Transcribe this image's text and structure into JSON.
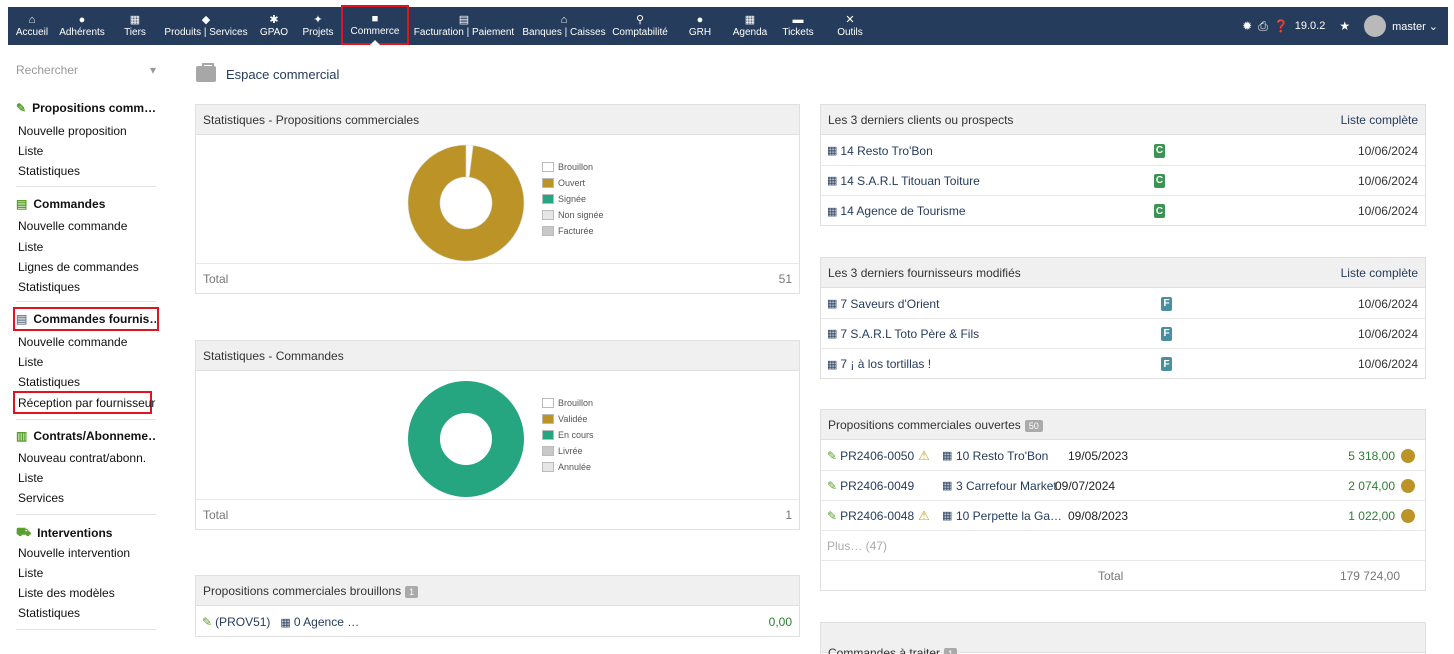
{
  "topnav": {
    "items": [
      {
        "label": "Accueil",
        "icon": "home-icon",
        "glyph": "⌂"
      },
      {
        "label": "Adhérents",
        "icon": "member-icon",
        "glyph": "●"
      },
      {
        "label": "Tiers",
        "icon": "building-icon",
        "glyph": "▦"
      },
      {
        "label": "Produits | Services",
        "icon": "cube-icon",
        "glyph": "◆"
      },
      {
        "label": "GPAO",
        "icon": "cogs-icon",
        "glyph": "✱"
      },
      {
        "label": "Projets",
        "icon": "project-icon",
        "glyph": "✦"
      },
      {
        "label": "Commerce",
        "icon": "briefcase-icon",
        "glyph": "■"
      },
      {
        "label": "Facturation | Paiement",
        "icon": "invoice-icon",
        "glyph": "▤"
      },
      {
        "label": "Banques | Caisses",
        "icon": "bank-icon",
        "glyph": "⌂"
      },
      {
        "label": "Comptabilité",
        "icon": "search-dollar-icon",
        "glyph": "⚲"
      },
      {
        "label": "GRH",
        "icon": "user-icon",
        "glyph": "●"
      },
      {
        "label": "Agenda",
        "icon": "calendar-icon",
        "glyph": "▦"
      },
      {
        "label": "Tickets",
        "icon": "ticket-icon",
        "glyph": "▬"
      },
      {
        "label": "Outils",
        "icon": "tools-icon",
        "glyph": "✕"
      }
    ],
    "version": "19.0.2",
    "user": "master ⌄"
  },
  "sidebar": {
    "search_placeholder": "Rechercher",
    "sections": [
      {
        "title": "Propositions comm…",
        "items": [
          "Nouvelle proposition",
          "Liste",
          "Statistiques"
        ]
      },
      {
        "title": "Commandes",
        "items": [
          "Nouvelle commande",
          "Liste",
          "Lignes de commandes",
          "Statistiques"
        ]
      },
      {
        "title": "Commandes fournis…",
        "items": [
          "Nouvelle commande",
          "Liste",
          "Statistiques",
          "Réception par fournisseur"
        ]
      },
      {
        "title": "Contrats/Abonneme…",
        "items": [
          "Nouveau contrat/abonn.",
          "Liste",
          "Services"
        ]
      },
      {
        "title": "Interventions",
        "items": [
          "Nouvelle intervention",
          "Liste",
          "Liste des modèles",
          "Statistiques"
        ]
      }
    ]
  },
  "page": {
    "title": "Espace commercial"
  },
  "stats_propals": {
    "title": "Statistiques - Propositions commerciales",
    "total_label": "Total",
    "total": "51",
    "chart_data": {
      "type": "pie",
      "categories": [
        "Brouillon",
        "Ouvert",
        "Signée",
        "Non signée",
        "Facturée"
      ],
      "values": [
        1,
        50,
        0,
        0,
        0
      ],
      "colors": [
        "#ffffff",
        "#bb9327",
        "#25a580",
        "#e6e6e6",
        "#c8c8c8"
      ]
    }
  },
  "stats_orders": {
    "title": "Statistiques - Commandes",
    "total_label": "Total",
    "total": "1",
    "chart_data": {
      "type": "pie",
      "categories": [
        "Brouillon",
        "Validée",
        "En cours",
        "Livrée",
        "Annulée"
      ],
      "values": [
        0,
        0,
        1,
        0,
        0
      ],
      "colors": [
        "#ffffff",
        "#bb9327",
        "#25a580",
        "#c8c8c8",
        "#e6e6e6"
      ]
    }
  },
  "draft_propals": {
    "title": "Propositions commerciales brouillons",
    "count": "1",
    "rows": [
      {
        "ref": "(PROV51)",
        "company": "0 Agence …",
        "amount": "0,00"
      }
    ]
  },
  "last_clients": {
    "title": "Les 3 derniers clients ou prospects",
    "link": "Liste complète",
    "rows": [
      {
        "name": "14 Resto Tro'Bon",
        "tag": "C",
        "date": "10/06/2024"
      },
      {
        "name": "14 S.A.R.L Titouan Toiture",
        "tag": "C",
        "date": "10/06/2024"
      },
      {
        "name": "14 Agence de Tourisme",
        "tag": "C",
        "date": "10/06/2024"
      }
    ]
  },
  "last_suppliers": {
    "title": "Les 3 derniers fournisseurs modifiés",
    "link": "Liste complète",
    "rows": [
      {
        "name": "7 Saveurs d'Orient",
        "tag": "F",
        "date": "10/06/2024"
      },
      {
        "name": "7 S.A.R.L Toto Père & Fils",
        "tag": "F",
        "date": "10/06/2024"
      },
      {
        "name": "7 ¡ à los tortillas !",
        "tag": "F",
        "date": "10/06/2024"
      }
    ]
  },
  "open_propals": {
    "title": "Propositions commerciales ouvertes",
    "count": "50",
    "rows": [
      {
        "ref": "PR2406-0050",
        "warn": true,
        "company": "10 Resto Tro'Bon",
        "date": "19/05/2023",
        "amount": "5 318,00"
      },
      {
        "ref": "PR2406-0049",
        "warn": false,
        "company": "3 Carrefour Market",
        "date": "09/07/2024",
        "amount": "2 074,00"
      },
      {
        "ref": "PR2406-0048",
        "warn": true,
        "company": "10 Perpette la Ga…",
        "date": "09/08/2023",
        "amount": "1 022,00"
      }
    ],
    "more": "Plus… (47)",
    "total_label": "Total",
    "total": "179 724,00"
  },
  "orders_todo": {
    "title": "Commandes à traiter",
    "count": "1"
  }
}
